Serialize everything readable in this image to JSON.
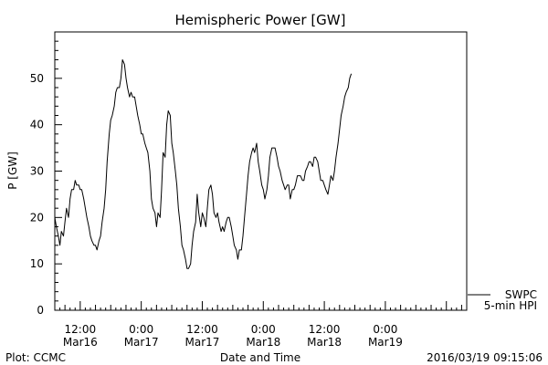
{
  "chart_data": {
    "type": "line",
    "title": "Hemispheric Power [GW]",
    "ylabel": "P [GW]",
    "xlabel": "Date and Time",
    "ylim": [
      0,
      60
    ],
    "xlim": [
      7,
      88
    ],
    "x_unit": "hours since 2016-03-16 00:00",
    "grid": false,
    "y_ticks": [
      0,
      10,
      20,
      30,
      40,
      50
    ],
    "x_ticks": [
      {
        "x": 12,
        "line1": "12:00",
        "line2": "Mar16"
      },
      {
        "x": 24,
        "line1": "0:00",
        "line2": "Mar17"
      },
      {
        "x": 36,
        "line1": "12:00",
        "line2": "Mar17"
      },
      {
        "x": 48,
        "line1": "0:00",
        "line2": "Mar18"
      },
      {
        "x": 60,
        "line1": "12:00",
        "line2": "Mar18"
      },
      {
        "x": 72,
        "line1": "0:00",
        "line2": "Mar19"
      }
    ],
    "legend": {
      "line1": "SWPC",
      "line2": "5-min HPI"
    },
    "series": [
      {
        "name": "5-min HPI",
        "color": "#000000",
        "points": [
          [
            7.0,
            20
          ],
          [
            7.3,
            18
          ],
          [
            7.7,
            16
          ],
          [
            8.0,
            14
          ],
          [
            8.3,
            17
          ],
          [
            8.7,
            16
          ],
          [
            9.0,
            19
          ],
          [
            9.3,
            22
          ],
          [
            9.7,
            20
          ],
          [
            10.0,
            24
          ],
          [
            10.3,
            26
          ],
          [
            10.7,
            26
          ],
          [
            11.0,
            28
          ],
          [
            11.3,
            27
          ],
          [
            11.7,
            27
          ],
          [
            12.0,
            26
          ],
          [
            12.3,
            26
          ],
          [
            12.7,
            24
          ],
          [
            13.0,
            22
          ],
          [
            13.3,
            20
          ],
          [
            13.7,
            18
          ],
          [
            14.0,
            16
          ],
          [
            14.3,
            15
          ],
          [
            14.7,
            14
          ],
          [
            15.0,
            14
          ],
          [
            15.3,
            13
          ],
          [
            15.7,
            15
          ],
          [
            16.0,
            16
          ],
          [
            16.3,
            19
          ],
          [
            16.7,
            22
          ],
          [
            17.0,
            26
          ],
          [
            17.3,
            32
          ],
          [
            17.7,
            38
          ],
          [
            18.0,
            41
          ],
          [
            18.3,
            42
          ],
          [
            18.7,
            44
          ],
          [
            19.0,
            47
          ],
          [
            19.3,
            48
          ],
          [
            19.7,
            48
          ],
          [
            20.0,
            50
          ],
          [
            20.3,
            54
          ],
          [
            20.7,
            53
          ],
          [
            21.0,
            50
          ],
          [
            21.3,
            48
          ],
          [
            21.7,
            46
          ],
          [
            22.0,
            47
          ],
          [
            22.3,
            46
          ],
          [
            22.7,
            46
          ],
          [
            23.0,
            44
          ],
          [
            23.3,
            42
          ],
          [
            23.7,
            40
          ],
          [
            24.0,
            38
          ],
          [
            24.3,
            38
          ],
          [
            24.7,
            36
          ],
          [
            25.0,
            35
          ],
          [
            25.3,
            34
          ],
          [
            25.7,
            30
          ],
          [
            26.0,
            24
          ],
          [
            26.3,
            22
          ],
          [
            26.7,
            21
          ],
          [
            27.0,
            18
          ],
          [
            27.3,
            21
          ],
          [
            27.7,
            20
          ],
          [
            28.0,
            26
          ],
          [
            28.3,
            34
          ],
          [
            28.7,
            33
          ],
          [
            29.0,
            40
          ],
          [
            29.3,
            43
          ],
          [
            29.7,
            42
          ],
          [
            30.0,
            36
          ],
          [
            30.3,
            34
          ],
          [
            30.7,
            30
          ],
          [
            31.0,
            27
          ],
          [
            31.3,
            22
          ],
          [
            31.7,
            18
          ],
          [
            32.0,
            14
          ],
          [
            32.3,
            13
          ],
          [
            32.7,
            11
          ],
          [
            33.0,
            9
          ],
          [
            33.3,
            9
          ],
          [
            33.7,
            10
          ],
          [
            34.0,
            14
          ],
          [
            34.3,
            17
          ],
          [
            34.7,
            19
          ],
          [
            35.0,
            25
          ],
          [
            35.3,
            21
          ],
          [
            35.7,
            18
          ],
          [
            36.0,
            21
          ],
          [
            36.3,
            20
          ],
          [
            36.7,
            18
          ],
          [
            37.0,
            22
          ],
          [
            37.3,
            26
          ],
          [
            37.7,
            27
          ],
          [
            38.0,
            25
          ],
          [
            38.3,
            21
          ],
          [
            38.7,
            20
          ],
          [
            39.0,
            21
          ],
          [
            39.3,
            19
          ],
          [
            39.7,
            17
          ],
          [
            40.0,
            18
          ],
          [
            40.3,
            17
          ],
          [
            40.7,
            19
          ],
          [
            41.0,
            20
          ],
          [
            41.3,
            20
          ],
          [
            41.7,
            18
          ],
          [
            42.0,
            16
          ],
          [
            42.3,
            14
          ],
          [
            42.7,
            13
          ],
          [
            43.0,
            11
          ],
          [
            43.3,
            13
          ],
          [
            43.7,
            13
          ],
          [
            44.0,
            16
          ],
          [
            44.3,
            20
          ],
          [
            44.7,
            25
          ],
          [
            45.0,
            29
          ],
          [
            45.3,
            32
          ],
          [
            45.7,
            34
          ],
          [
            46.0,
            35
          ],
          [
            46.3,
            34
          ],
          [
            46.7,
            36
          ],
          [
            47.0,
            32
          ],
          [
            47.3,
            30
          ],
          [
            47.7,
            27
          ],
          [
            48.0,
            26
          ],
          [
            48.3,
            24
          ],
          [
            48.7,
            26
          ],
          [
            49.0,
            29
          ],
          [
            49.3,
            33
          ],
          [
            49.7,
            35
          ],
          [
            50.0,
            35
          ],
          [
            50.3,
            35
          ],
          [
            50.7,
            33
          ],
          [
            51.0,
            31
          ],
          [
            51.3,
            30
          ],
          [
            51.7,
            28
          ],
          [
            52.0,
            27
          ],
          [
            52.3,
            26
          ],
          [
            52.7,
            27
          ],
          [
            53.0,
            27
          ],
          [
            53.3,
            24
          ],
          [
            53.7,
            26
          ],
          [
            54.0,
            26
          ],
          [
            54.3,
            27
          ],
          [
            54.7,
            29
          ],
          [
            55.0,
            29
          ],
          [
            55.3,
            29
          ],
          [
            55.7,
            28
          ],
          [
            56.0,
            28
          ],
          [
            56.3,
            30
          ],
          [
            56.7,
            31
          ],
          [
            57.0,
            32
          ],
          [
            57.3,
            32
          ],
          [
            57.7,
            31
          ],
          [
            58.0,
            33
          ],
          [
            58.3,
            33
          ],
          [
            58.7,
            32
          ],
          [
            59.0,
            30
          ],
          [
            59.3,
            28
          ],
          [
            59.7,
            28
          ],
          [
            60.0,
            27
          ],
          [
            60.3,
            26
          ],
          [
            60.7,
            25
          ],
          [
            61.0,
            27
          ],
          [
            61.3,
            29
          ],
          [
            61.7,
            28
          ],
          [
            62.0,
            30
          ],
          [
            62.3,
            33
          ],
          [
            62.7,
            36
          ],
          [
            63.0,
            39
          ],
          [
            63.3,
            42
          ],
          [
            63.7,
            44
          ],
          [
            64.0,
            46
          ],
          [
            64.3,
            47
          ],
          [
            64.7,
            48
          ],
          [
            65.0,
            50
          ],
          [
            65.3,
            51
          ]
        ]
      }
    ]
  },
  "footer": {
    "plot_credit": "Plot: CCMC",
    "xlabel": "Date and Time",
    "timestamp": "2016/03/19 09:15:06"
  }
}
